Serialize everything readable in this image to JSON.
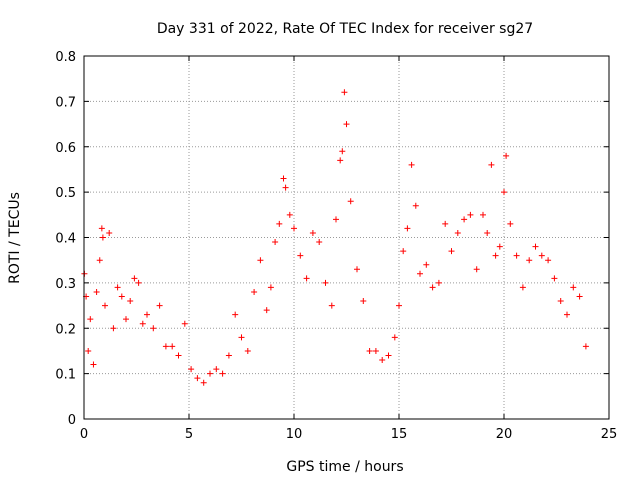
{
  "chart_data": {
    "type": "scatter",
    "title": "Day 331 of 2022, Rate Of TEC Index for receiver sg27",
    "xlabel": "GPS time / hours",
    "ylabel": "ROTI / TECUs",
    "xlim": [
      0,
      25
    ],
    "ylim": [
      0,
      0.8
    ],
    "x_ticks": [
      "0",
      "5",
      "10",
      "15",
      "20",
      "25"
    ],
    "y_ticks": [
      "0",
      "0.1",
      "0.2",
      "0.3",
      "0.4",
      "0.5",
      "0.6",
      "0.7",
      "0.8"
    ],
    "grid": true,
    "marker": "+",
    "marker_color": "#ff0000",
    "series": [
      {
        "x": [
          0.02,
          0.1,
          0.2,
          0.3,
          0.45,
          0.6,
          0.75,
          0.85,
          0.9,
          1.0,
          1.2,
          1.4,
          1.6,
          1.8,
          2.0,
          2.2,
          2.4,
          2.6,
          2.8,
          3.0,
          3.3,
          3.6,
          3.9,
          4.2,
          4.5,
          4.8,
          5.1,
          5.4,
          5.7,
          6.0,
          6.3,
          6.6,
          6.9,
          7.2,
          7.5,
          7.8,
          8.1,
          8.4,
          8.7,
          8.9,
          9.1,
          9.3,
          9.5,
          9.6,
          9.8,
          10.0,
          10.3,
          10.6,
          10.9,
          11.2,
          11.5,
          11.8,
          12.0,
          12.2,
          12.3,
          12.4,
          12.5,
          12.7,
          13.0,
          13.3,
          13.6,
          13.9,
          14.2,
          14.5,
          14.8,
          15.0,
          15.2,
          15.4,
          15.6,
          15.8,
          16.0,
          16.3,
          16.6,
          16.9,
          17.2,
          17.5,
          17.8,
          18.1,
          18.4,
          18.7,
          19.0,
          19.2,
          19.4,
          19.6,
          19.8,
          20.0,
          20.1,
          20.3,
          20.6,
          20.9,
          21.2,
          21.5,
          21.8,
          22.1,
          22.4,
          22.7,
          23.0,
          23.3,
          23.6,
          23.9
        ],
        "y": [
          0.32,
          0.27,
          0.15,
          0.22,
          0.12,
          0.28,
          0.35,
          0.42,
          0.4,
          0.25,
          0.41,
          0.2,
          0.29,
          0.27,
          0.22,
          0.26,
          0.31,
          0.3,
          0.21,
          0.23,
          0.2,
          0.25,
          0.16,
          0.16,
          0.14,
          0.21,
          0.11,
          0.09,
          0.08,
          0.1,
          0.11,
          0.1,
          0.14,
          0.23,
          0.18,
          0.15,
          0.28,
          0.35,
          0.24,
          0.29,
          0.39,
          0.43,
          0.53,
          0.51,
          0.45,
          0.42,
          0.36,
          0.31,
          0.41,
          0.39,
          0.3,
          0.25,
          0.44,
          0.57,
          0.59,
          0.72,
          0.65,
          0.48,
          0.33,
          0.26,
          0.15,
          0.15,
          0.13,
          0.14,
          0.18,
          0.25,
          0.37,
          0.42,
          0.56,
          0.47,
          0.32,
          0.34,
          0.29,
          0.3,
          0.43,
          0.37,
          0.41,
          0.44,
          0.45,
          0.33,
          0.45,
          0.41,
          0.56,
          0.36,
          0.38,
          0.5,
          0.58,
          0.43,
          0.36,
          0.29,
          0.35,
          0.38,
          0.36,
          0.35,
          0.31,
          0.26,
          0.23,
          0.29,
          0.27,
          0.16
        ]
      }
    ]
  }
}
